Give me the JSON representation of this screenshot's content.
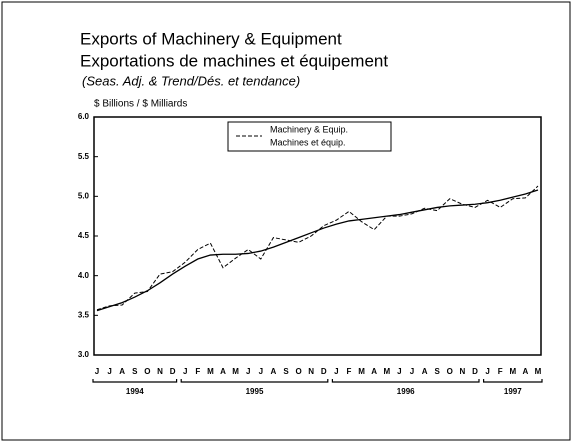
{
  "chart_data": {
    "type": "line",
    "title": "Exports of Machinery & Equipment",
    "title_fr": "Exportations de machines et équipement",
    "subtitle": "(Seas. Adj. & Trend/Dés. et tendance)",
    "y_label": "$ Billions / $ Milliards",
    "categories": [
      "J",
      "J",
      "A",
      "S",
      "O",
      "N",
      "D",
      "J",
      "F",
      "M",
      "A",
      "M",
      "J",
      "J",
      "A",
      "S",
      "O",
      "N",
      "D",
      "J",
      "F",
      "M",
      "A",
      "M",
      "J",
      "J",
      "A",
      "S",
      "O",
      "N",
      "D",
      "J",
      "F",
      "M",
      "A",
      "M"
    ],
    "years": [
      "1994",
      "1995",
      "1996",
      "1997"
    ],
    "series": [
      {
        "name": "Machinery & Equip.",
        "name_fr": "Machines et équip.",
        "color": "#000000",
        "dash": true,
        "values": [
          3.57,
          3.62,
          3.63,
          3.78,
          3.8,
          4.02,
          4.05,
          4.17,
          4.33,
          4.41,
          4.1,
          4.22,
          4.33,
          4.21,
          4.48,
          4.45,
          4.42,
          4.5,
          4.63,
          4.7,
          4.81,
          4.68,
          4.58,
          4.75,
          4.75,
          4.78,
          4.85,
          4.82,
          4.97,
          4.9,
          4.86,
          4.95,
          4.86,
          4.97,
          4.98,
          5.13
        ]
      },
      {
        "color": "#000000",
        "dash": false,
        "values": [
          3.56,
          3.61,
          3.66,
          3.73,
          3.81,
          3.91,
          4.02,
          4.12,
          4.21,
          4.26,
          4.27,
          4.27,
          4.28,
          4.31,
          4.36,
          4.42,
          4.48,
          4.54,
          4.6,
          4.65,
          4.69,
          4.71,
          4.73,
          4.75,
          4.77,
          4.8,
          4.83,
          4.86,
          4.88,
          4.89,
          4.9,
          4.92,
          4.95,
          4.99,
          5.03,
          5.08
        ]
      }
    ],
    "ylim": [
      3.0,
      6.0
    ],
    "yticks": [
      {
        "value": 3.0,
        "label": "3.0"
      },
      {
        "value": 3.5,
        "label": "3.5"
      },
      {
        "value": 4.0,
        "label": "4.0"
      },
      {
        "value": 4.5,
        "label": "4.5"
      },
      {
        "value": 5.0,
        "label": "5.0"
      },
      {
        "value": 5.5,
        "label": "5.5"
      },
      {
        "value": 6.0,
        "label": "6.0"
      }
    ],
    "legend": "top"
  }
}
